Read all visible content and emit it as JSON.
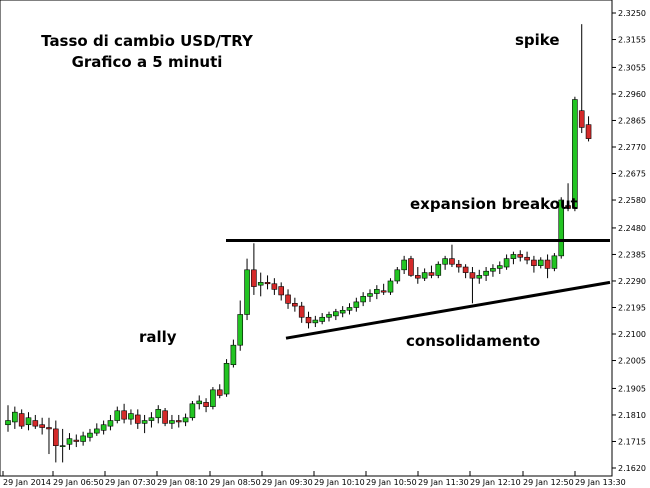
{
  "chart_data": {
    "type": "candlestick",
    "title": "Tasso di cambio USD/TRY",
    "subtitle": "Grafico a 5 minuti",
    "ylim": [
      2.1605,
      2.327
    ],
    "y_ticks": [
      "2.3250",
      "2.3155",
      "2.3055",
      "2.2960",
      "2.2865",
      "2.2770",
      "2.2675",
      "2.2580",
      "2.2480",
      "2.2385",
      "2.2290",
      "2.2195",
      "2.2100",
      "2.2005",
      "2.1905",
      "2.1810",
      "2.1715",
      "2.1620"
    ],
    "x_ticks": [
      "29 Jan 2014",
      "29 Jan 06:50",
      "29 Jan 07:30",
      "29 Jan 08:10",
      "29 Jan 08:50",
      "29 Jan 09:30",
      "29 Jan 10:10",
      "29 Jan 10:50",
      "29 Jan 11:30",
      "29 Jan 12:10",
      "29 Jan 12:50",
      "29 Jan 13:30"
    ],
    "annotations": [
      "spike",
      "expansion breakout",
      "rally",
      "consolidamento"
    ],
    "colors": {
      "up": "#22c422",
      "down": "#d42a2a",
      "outline": "#000000",
      "line": "#000000"
    },
    "resistance_line": {
      "from": [
        36,
        2.2435
      ],
      "to": [
        90,
        2.2435
      ]
    },
    "support_line": {
      "from": [
        46,
        2.2085
      ],
      "to": [
        95,
        2.2285
      ]
    },
    "candles": [
      {
        "o": 2.1775,
        "h": 2.1845,
        "l": 2.175,
        "c": 2.179
      },
      {
        "o": 2.1785,
        "h": 2.184,
        "l": 2.176,
        "c": 2.182
      },
      {
        "o": 2.1815,
        "h": 2.183,
        "l": 2.176,
        "c": 2.177
      },
      {
        "o": 2.1775,
        "h": 2.182,
        "l": 2.1755,
        "c": 2.18
      },
      {
        "o": 2.179,
        "h": 2.181,
        "l": 2.176,
        "c": 2.177
      },
      {
        "o": 2.1775,
        "h": 2.18,
        "l": 2.174,
        "c": 2.1765
      },
      {
        "o": 2.1765,
        "h": 2.18,
        "l": 2.167,
        "c": 2.176
      },
      {
        "o": 2.176,
        "h": 2.179,
        "l": 2.164,
        "c": 2.17
      },
      {
        "o": 2.17,
        "h": 2.176,
        "l": 2.164,
        "c": 2.17
      },
      {
        "o": 2.1705,
        "h": 2.1745,
        "l": 2.1685,
        "c": 2.1725
      },
      {
        "o": 2.172,
        "h": 2.174,
        "l": 2.1695,
        "c": 2.1715
      },
      {
        "o": 2.1715,
        "h": 2.175,
        "l": 2.17,
        "c": 2.1735
      },
      {
        "o": 2.173,
        "h": 2.176,
        "l": 2.1715,
        "c": 2.1745
      },
      {
        "o": 2.1745,
        "h": 2.178,
        "l": 2.1735,
        "c": 2.176
      },
      {
        "o": 2.1755,
        "h": 2.179,
        "l": 2.174,
        "c": 2.1775
      },
      {
        "o": 2.177,
        "h": 2.181,
        "l": 2.1755,
        "c": 2.179
      },
      {
        "o": 2.179,
        "h": 2.184,
        "l": 2.178,
        "c": 2.1825
      },
      {
        "o": 2.1825,
        "h": 2.185,
        "l": 2.178,
        "c": 2.1795
      },
      {
        "o": 2.1795,
        "h": 2.183,
        "l": 2.1775,
        "c": 2.1815
      },
      {
        "o": 2.181,
        "h": 2.183,
        "l": 2.176,
        "c": 2.178
      },
      {
        "o": 2.178,
        "h": 2.181,
        "l": 2.1745,
        "c": 2.179
      },
      {
        "o": 2.179,
        "h": 2.182,
        "l": 2.1765,
        "c": 2.18
      },
      {
        "o": 2.18,
        "h": 2.1845,
        "l": 2.178,
        "c": 2.183
      },
      {
        "o": 2.1825,
        "h": 2.1835,
        "l": 2.177,
        "c": 2.178
      },
      {
        "o": 2.178,
        "h": 2.181,
        "l": 2.176,
        "c": 2.179
      },
      {
        "o": 2.179,
        "h": 2.181,
        "l": 2.1765,
        "c": 2.1785
      },
      {
        "o": 2.1785,
        "h": 2.1815,
        "l": 2.177,
        "c": 2.18
      },
      {
        "o": 2.18,
        "h": 2.186,
        "l": 2.179,
        "c": 2.185
      },
      {
        "o": 2.185,
        "h": 2.188,
        "l": 2.183,
        "c": 2.186
      },
      {
        "o": 2.1855,
        "h": 2.187,
        "l": 2.182,
        "c": 2.184
      },
      {
        "o": 2.184,
        "h": 2.191,
        "l": 2.183,
        "c": 2.19
      },
      {
        "o": 2.19,
        "h": 2.192,
        "l": 2.187,
        "c": 2.188
      },
      {
        "o": 2.1885,
        "h": 2.201,
        "l": 2.1875,
        "c": 2.1995
      },
      {
        "o": 2.199,
        "h": 2.208,
        "l": 2.198,
        "c": 2.206
      },
      {
        "o": 2.206,
        "h": 2.222,
        "l": 2.204,
        "c": 2.217
      },
      {
        "o": 2.217,
        "h": 2.237,
        "l": 2.215,
        "c": 2.233
      },
      {
        "o": 2.233,
        "h": 2.2425,
        "l": 2.224,
        "c": 2.227
      },
      {
        "o": 2.2275,
        "h": 2.232,
        "l": 2.2235,
        "c": 2.2285
      },
      {
        "o": 2.2285,
        "h": 2.231,
        "l": 2.226,
        "c": 2.228
      },
      {
        "o": 2.228,
        "h": 2.23,
        "l": 2.224,
        "c": 2.226
      },
      {
        "o": 2.227,
        "h": 2.2285,
        "l": 2.222,
        "c": 2.224
      },
      {
        "o": 2.224,
        "h": 2.226,
        "l": 2.219,
        "c": 2.221
      },
      {
        "o": 2.221,
        "h": 2.223,
        "l": 2.218,
        "c": 2.22
      },
      {
        "o": 2.22,
        "h": 2.2215,
        "l": 2.214,
        "c": 2.216
      },
      {
        "o": 2.216,
        "h": 2.218,
        "l": 2.212,
        "c": 2.214
      },
      {
        "o": 2.214,
        "h": 2.2165,
        "l": 2.2125,
        "c": 2.215
      },
      {
        "o": 2.2145,
        "h": 2.2175,
        "l": 2.2135,
        "c": 2.216
      },
      {
        "o": 2.216,
        "h": 2.218,
        "l": 2.2145,
        "c": 2.217
      },
      {
        "o": 2.2165,
        "h": 2.219,
        "l": 2.215,
        "c": 2.218
      },
      {
        "o": 2.2175,
        "h": 2.22,
        "l": 2.216,
        "c": 2.2185
      },
      {
        "o": 2.2185,
        "h": 2.221,
        "l": 2.217,
        "c": 2.2195
      },
      {
        "o": 2.2195,
        "h": 2.223,
        "l": 2.218,
        "c": 2.2215
      },
      {
        "o": 2.2215,
        "h": 2.225,
        "l": 2.22,
        "c": 2.2235
      },
      {
        "o": 2.2235,
        "h": 2.226,
        "l": 2.2215,
        "c": 2.2245
      },
      {
        "o": 2.2245,
        "h": 2.2275,
        "l": 2.2225,
        "c": 2.226
      },
      {
        "o": 2.2255,
        "h": 2.228,
        "l": 2.224,
        "c": 2.225
      },
      {
        "o": 2.225,
        "h": 2.23,
        "l": 2.224,
        "c": 2.229
      },
      {
        "o": 2.229,
        "h": 2.234,
        "l": 2.228,
        "c": 2.233
      },
      {
        "o": 2.233,
        "h": 2.238,
        "l": 2.2315,
        "c": 2.2365
      },
      {
        "o": 2.237,
        "h": 2.238,
        "l": 2.2305,
        "c": 2.231
      },
      {
        "o": 2.231,
        "h": 2.234,
        "l": 2.228,
        "c": 2.23
      },
      {
        "o": 2.23,
        "h": 2.2335,
        "l": 2.229,
        "c": 2.232
      },
      {
        "o": 2.232,
        "h": 2.2345,
        "l": 2.23,
        "c": 2.231
      },
      {
        "o": 2.231,
        "h": 2.236,
        "l": 2.23,
        "c": 2.235
      },
      {
        "o": 2.235,
        "h": 2.238,
        "l": 2.233,
        "c": 2.237
      },
      {
        "o": 2.237,
        "h": 2.242,
        "l": 2.234,
        "c": 2.235
      },
      {
        "o": 2.235,
        "h": 2.2365,
        "l": 2.232,
        "c": 2.234
      },
      {
        "o": 2.234,
        "h": 2.235,
        "l": 2.23,
        "c": 2.232
      },
      {
        "o": 2.232,
        "h": 2.234,
        "l": 2.221,
        "c": 2.23
      },
      {
        "o": 2.23,
        "h": 2.233,
        "l": 2.228,
        "c": 2.231
      },
      {
        "o": 2.231,
        "h": 2.234,
        "l": 2.229,
        "c": 2.2325
      },
      {
        "o": 2.2325,
        "h": 2.235,
        "l": 2.2305,
        "c": 2.2335
      },
      {
        "o": 2.2335,
        "h": 2.236,
        "l": 2.2315,
        "c": 2.2345
      },
      {
        "o": 2.234,
        "h": 2.2385,
        "l": 2.233,
        "c": 2.237
      },
      {
        "o": 2.237,
        "h": 2.2395,
        "l": 2.235,
        "c": 2.2385
      },
      {
        "o": 2.2385,
        "h": 2.24,
        "l": 2.236,
        "c": 2.2375
      },
      {
        "o": 2.2375,
        "h": 2.2395,
        "l": 2.235,
        "c": 2.2365
      },
      {
        "o": 2.2365,
        "h": 2.238,
        "l": 2.232,
        "c": 2.2345
      },
      {
        "o": 2.2345,
        "h": 2.2375,
        "l": 2.2335,
        "c": 2.2365
      },
      {
        "o": 2.2365,
        "h": 2.2385,
        "l": 2.23,
        "c": 2.2335
      },
      {
        "o": 2.2335,
        "h": 2.239,
        "l": 2.2325,
        "c": 2.238
      },
      {
        "o": 2.238,
        "h": 2.259,
        "l": 2.237,
        "c": 2.258
      },
      {
        "o": 2.256,
        "h": 2.264,
        "l": 2.254,
        "c": 2.255
      },
      {
        "o": 2.255,
        "h": 2.295,
        "l": 2.254,
        "c": 2.294
      },
      {
        "o": 2.29,
        "h": 2.321,
        "l": 2.282,
        "c": 2.284
      },
      {
        "o": 2.285,
        "h": 2.288,
        "l": 2.279,
        "c": 2.28
      }
    ]
  }
}
